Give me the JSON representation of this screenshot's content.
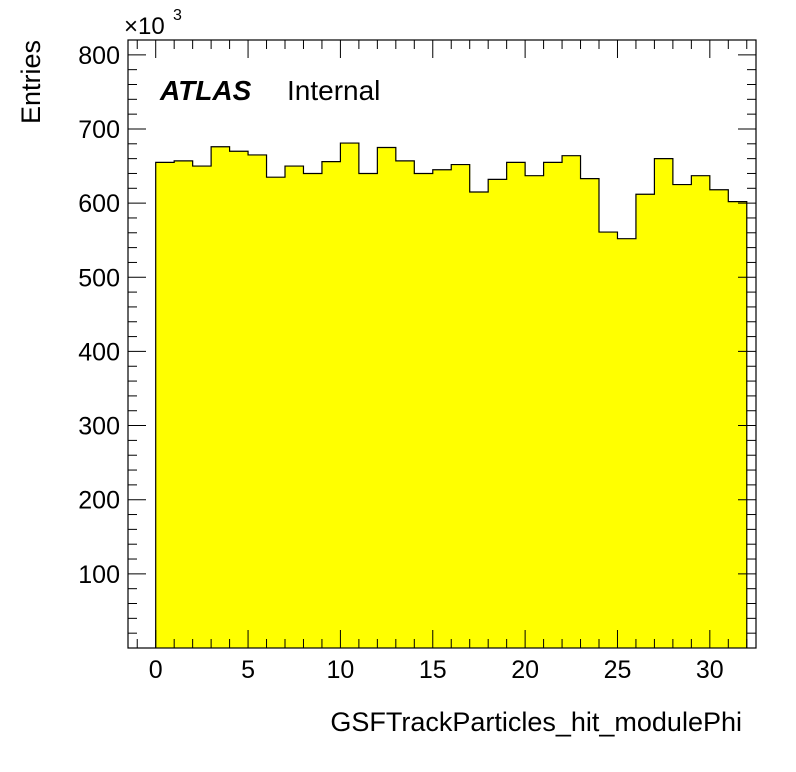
{
  "chart_data": {
    "type": "bar",
    "histogram": true,
    "x_bin_edges": [
      0,
      32
    ],
    "bin_width": 1,
    "values": [
      655,
      657,
      650,
      676,
      670,
      665,
      635,
      650,
      640,
      656,
      681,
      640,
      675,
      657,
      640,
      645,
      652,
      615,
      632,
      655,
      637,
      655,
      664,
      633,
      561,
      552,
      612,
      660,
      625,
      637,
      618,
      602
    ],
    "fill_color": "#ffff00",
    "line_color": "#000000",
    "xlabel": "GSFTrackParticles_hit_modulePhi",
    "ylabel": "Entries",
    "y_multiplier": "×10",
    "y_multiplier_power": "3",
    "xlim": [
      -1.5,
      32.5
    ],
    "ylim": [
      0,
      820
    ],
    "x_ticks": [
      "0",
      "5",
      "10",
      "15",
      "20",
      "25",
      "30"
    ],
    "y_ticks": [
      "100",
      "200",
      "300",
      "400",
      "500",
      "600",
      "700",
      "800"
    ],
    "grid": false
  },
  "labels": {
    "experiment": "ATLAS",
    "status": "Internal"
  }
}
